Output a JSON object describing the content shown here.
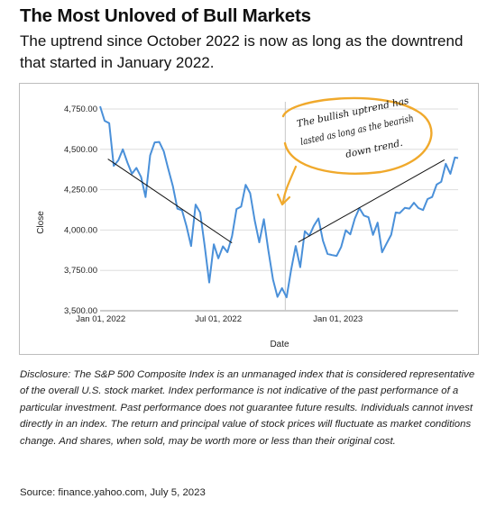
{
  "header": {
    "title": "The Most Unloved of Bull Markets",
    "subtitle": "The uptrend since October 2022 is now as long as the downtrend that started in January 2022."
  },
  "chart_data": {
    "type": "line",
    "xlabel": "Date",
    "ylabel": "Close",
    "x_ticks": [
      "Jan 01, 2022",
      "Jul 01, 2022",
      "Jan 01, 2023"
    ],
    "y_ticks": [
      "4,750.00",
      "4,500.00",
      "4,250.00",
      "4,000.00",
      "3,750.00",
      "3,500.00"
    ],
    "ylim": [
      3500,
      4750
    ],
    "xlim": [
      "2021-12-31",
      "2023-07-05"
    ],
    "grid": "horizontal",
    "line_color": "#4a90d9",
    "series": [
      {
        "x": [
          "2021-12-31",
          "2022-01-07",
          "2022-01-14",
          "2022-01-21",
          "2022-01-28",
          "2022-02-04",
          "2022-02-11",
          "2022-02-18",
          "2022-02-25",
          "2022-03-04",
          "2022-03-11",
          "2022-03-18",
          "2022-03-25",
          "2022-04-01",
          "2022-04-08",
          "2022-04-14",
          "2022-04-22",
          "2022-04-29",
          "2022-05-06",
          "2022-05-13",
          "2022-05-20",
          "2022-05-27",
          "2022-06-03",
          "2022-06-10",
          "2022-06-17",
          "2022-06-24",
          "2022-07-01",
          "2022-07-08",
          "2022-07-15",
          "2022-07-22",
          "2022-07-29",
          "2022-08-05",
          "2022-08-12",
          "2022-08-19",
          "2022-08-26",
          "2022-09-02",
          "2022-09-09",
          "2022-09-16",
          "2022-09-23",
          "2022-09-30",
          "2022-10-07",
          "2022-10-14",
          "2022-10-21",
          "2022-10-28",
          "2022-11-04",
          "2022-11-11",
          "2022-11-18",
          "2022-11-25",
          "2022-12-02",
          "2022-12-09",
          "2022-12-16",
          "2022-12-23",
          "2022-12-30",
          "2023-01-06",
          "2023-01-13",
          "2023-01-20",
          "2023-01-27",
          "2023-02-03",
          "2023-02-10",
          "2023-02-17",
          "2023-02-24",
          "2023-03-03",
          "2023-03-10",
          "2023-03-17",
          "2023-03-24",
          "2023-03-31",
          "2023-04-06",
          "2023-04-14",
          "2023-04-21",
          "2023-04-28",
          "2023-05-05",
          "2023-05-12",
          "2023-05-19",
          "2023-05-26",
          "2023-06-02",
          "2023-06-09",
          "2023-06-16",
          "2023-06-23",
          "2023-06-30",
          "2023-07-05"
        ],
        "values": [
          4766,
          4677,
          4662,
          4398,
          4432,
          4500,
          4418,
          4349,
          4385,
          4329,
          4204,
          4463,
          4543,
          4546,
          4488,
          4393,
          4272,
          4132,
          4123,
          4024,
          3901,
          4158,
          4108,
          3900,
          3675,
          3912,
          3825,
          3899,
          3863,
          3962,
          4130,
          4145,
          4280,
          4228,
          4058,
          3924,
          4067,
          3873,
          3694,
          3586,
          3640,
          3583,
          3753,
          3901,
          3770,
          3993,
          3965,
          4026,
          4072,
          3934,
          3852,
          3845,
          3840,
          3895,
          3999,
          3973,
          4070,
          4136,
          4090,
          4079,
          3970,
          4046,
          3862,
          3917,
          3971,
          4109,
          4105,
          4137,
          4133,
          4169,
          4136,
          4124,
          4192,
          4205,
          4282,
          4299,
          4410,
          4348,
          4450,
          4446
        ]
      }
    ],
    "annotation": {
      "text_lines": [
        "The bullish uptrend has",
        "lasted as long as the bearish",
        "down trend."
      ],
      "downtrend_line": {
        "from": [
          "2022-01-12",
          4440
        ],
        "to": [
          "2022-07-22",
          3920
        ]
      },
      "uptrend_line": {
        "from": [
          "2022-11-01",
          3925
        ],
        "to": [
          "2023-06-14",
          4435
        ]
      },
      "circle_color": "#f0a92c"
    }
  },
  "disclosure": "Disclosure: The S&P 500 Composite Index is an unmanaged index that is considered representative of the overall U.S. stock market. Index performance is not indicative of the past performance of a particular investment. Past performance does not guarantee future results. Individuals cannot invest directly in an index. The return and principal value of stock prices will fluctuate as market conditions change. And shares, when sold, may be worth more or less than their original cost.",
  "source": "Source: finance.yahoo.com, July 5, 2023"
}
